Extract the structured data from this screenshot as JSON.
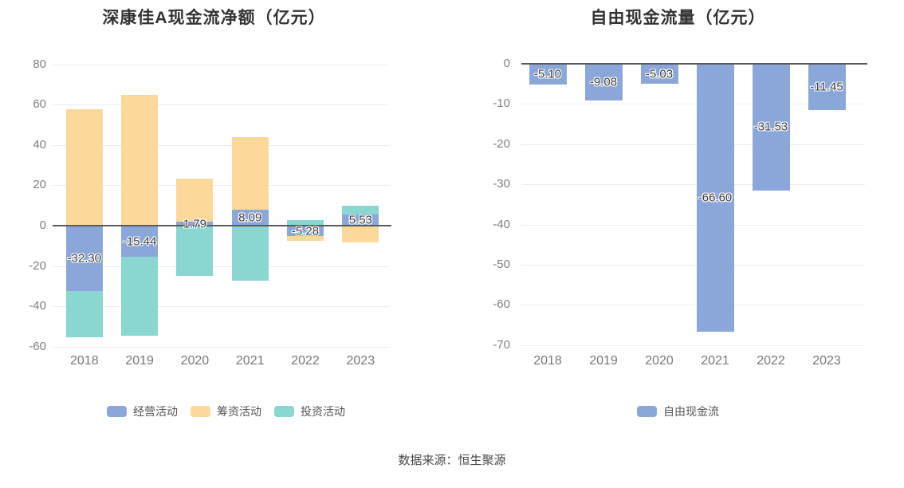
{
  "source_note": "数据来源：恒生聚源",
  "colors": {
    "operating_blue": "#8BA7DA",
    "financing_orange": "#FCD89B",
    "investing_teal": "#8AD6D1",
    "gridline": "#E8EDF4",
    "zero_axis": "#5B5B5B",
    "title_text": "#333333",
    "tick_text": "#7D7F83",
    "legend_text": "#555555"
  },
  "chart_data": [
    {
      "type": "bar",
      "variant": "stacked",
      "title": "深康佳A现金流净额（亿元）",
      "categories": [
        "2018",
        "2019",
        "2020",
        "2021",
        "2022",
        "2023"
      ],
      "yticks": [
        80,
        60,
        40,
        20,
        0,
        -20,
        -40,
        -60
      ],
      "ylim": [
        -60,
        80
      ],
      "grid": true,
      "legend_position": "bottom",
      "series": [
        {
          "name": "经营活动",
          "color": "#8BA7DA",
          "labels_shown": true,
          "values": [
            -32.3,
            -15.44,
            1.79,
            8.09,
            -5.28,
            5.53
          ]
        },
        {
          "name": "筹资活动",
          "color": "#FCD89B",
          "labels_shown": false,
          "values": [
            57.9,
            64.9,
            21.4,
            35.7,
            -2.4,
            -8.3
          ]
        },
        {
          "name": "投资活动",
          "color": "#8AD6D1",
          "labels_shown": false,
          "values": [
            -23.1,
            -39.2,
            -25.0,
            -27.2,
            2.9,
            4.4
          ]
        }
      ]
    },
    {
      "type": "bar",
      "variant": "single",
      "title": "自由现金流量（亿元）",
      "categories": [
        "2018",
        "2019",
        "2020",
        "2021",
        "2022",
        "2023"
      ],
      "yticks": [
        0,
        -10,
        -20,
        -30,
        -40,
        -50,
        -60,
        -70
      ],
      "ylim": [
        -70,
        0
      ],
      "grid": true,
      "legend_position": "bottom",
      "series": [
        {
          "name": "自由现金流",
          "color": "#8BA7DA",
          "labels_shown": true,
          "values": [
            -5.1,
            -9.08,
            -5.03,
            -66.6,
            -31.53,
            -11.45
          ]
        }
      ]
    }
  ]
}
